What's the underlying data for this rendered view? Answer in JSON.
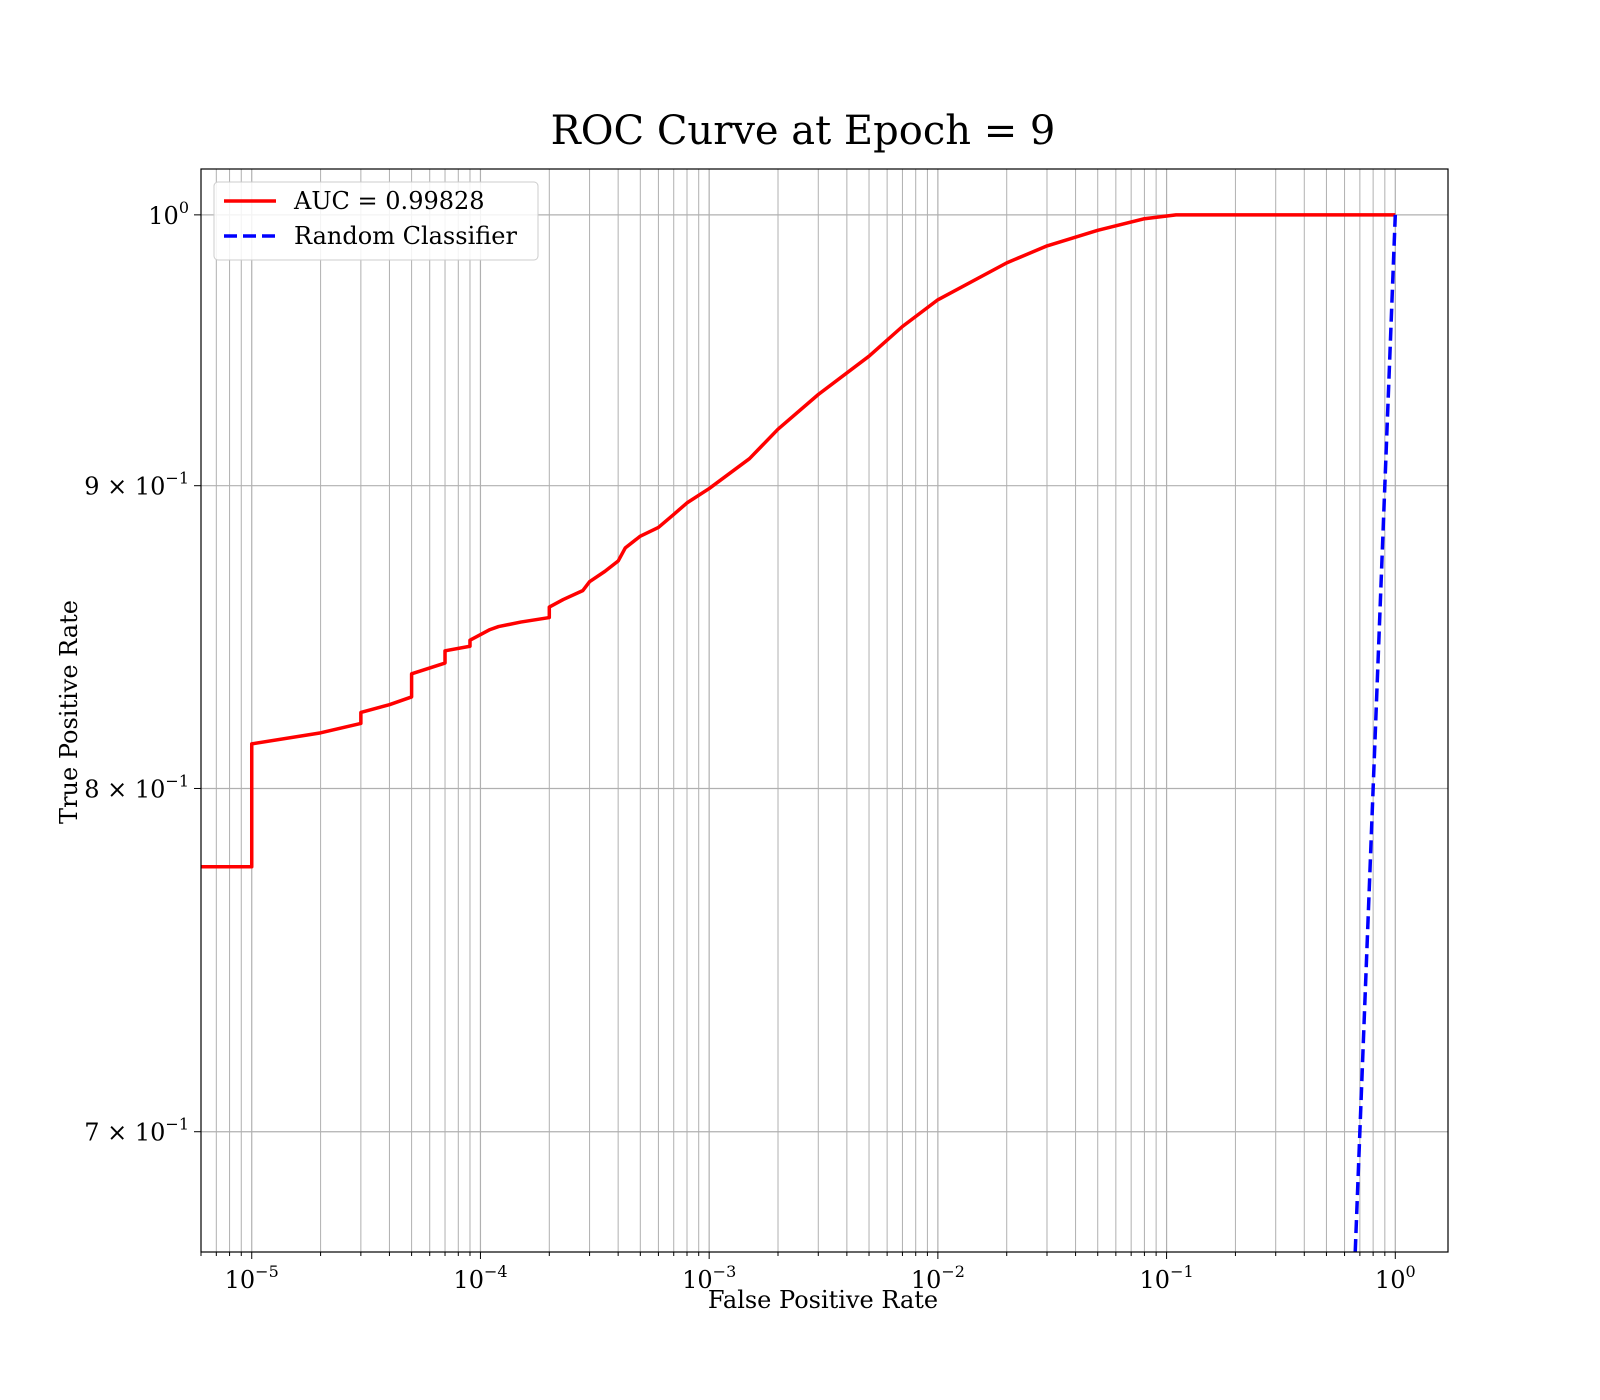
{
  "chart_data": {
    "type": "line",
    "title": "ROC Curve at Epoch = 9",
    "xlabel": "False Positive Rate",
    "ylabel": "True Positive Rate",
    "xscale": "log",
    "yscale": "log",
    "xlim": [
      6e-06,
      1.7
    ],
    "ylim": [
      0.668,
      1.018
    ],
    "grid": "both (major and minor)",
    "legend_position": "top-left",
    "x_ticks": [
      {
        "value": 1e-05,
        "base": "10",
        "exp": "−5"
      },
      {
        "value": 0.0001,
        "base": "10",
        "exp": "−4"
      },
      {
        "value": 0.001,
        "base": "10",
        "exp": "−3"
      },
      {
        "value": 0.01,
        "base": "10",
        "exp": "−2"
      },
      {
        "value": 0.1,
        "base": "10",
        "exp": "−1"
      },
      {
        "value": 1,
        "base": "10",
        "exp": "0"
      }
    ],
    "y_ticks": [
      {
        "value": 1.0,
        "base": "10",
        "exp": "0"
      },
      {
        "value": 0.9,
        "base": "9 × 10",
        "exp": "−1"
      },
      {
        "value": 0.8,
        "base": "8 × 10",
        "exp": "−1"
      },
      {
        "value": 0.7,
        "base": "7 × 10",
        "exp": "−1"
      }
    ],
    "series": [
      {
        "name": "AUC = 0.99828",
        "color": "#ff0000",
        "style": "solid",
        "x": [
          6e-06,
          1e-05,
          1e-05,
          2e-05,
          3e-05,
          3e-05,
          4e-05,
          5e-05,
          5e-05,
          7e-05,
          7e-05,
          9e-05,
          9e-05,
          0.00011,
          0.00012,
          0.00015,
          0.0002,
          0.0002,
          0.00023,
          0.00028,
          0.0003,
          0.00035,
          0.0004,
          0.00043,
          0.0005,
          0.0006,
          0.0007,
          0.0008,
          0.001,
          0.0015,
          0.002,
          0.003,
          0.005,
          0.007,
          0.01,
          0.02,
          0.03,
          0.05,
          0.08,
          0.11,
          0.2,
          0.5,
          1.0
        ],
        "y": [
          0.776,
          0.776,
          0.814,
          0.8175,
          0.8205,
          0.824,
          0.8265,
          0.829,
          0.8365,
          0.84,
          0.844,
          0.8455,
          0.8475,
          0.851,
          0.852,
          0.8535,
          0.855,
          0.8585,
          0.861,
          0.864,
          0.867,
          0.8705,
          0.874,
          0.8785,
          0.8825,
          0.8855,
          0.89,
          0.894,
          0.899,
          0.9095,
          0.92,
          0.9325,
          0.9465,
          0.9575,
          0.9675,
          0.9815,
          0.988,
          0.994,
          0.9985,
          1.0,
          1.0,
          1.0,
          1.0
        ]
      },
      {
        "name": "Random Classifier",
        "color": "#0000ff",
        "style": "dashed",
        "x": [
          0.668,
          0.7,
          0.8,
          0.9,
          1.0
        ],
        "y": [
          0.668,
          0.7,
          0.8,
          0.9,
          1.0
        ]
      }
    ]
  }
}
